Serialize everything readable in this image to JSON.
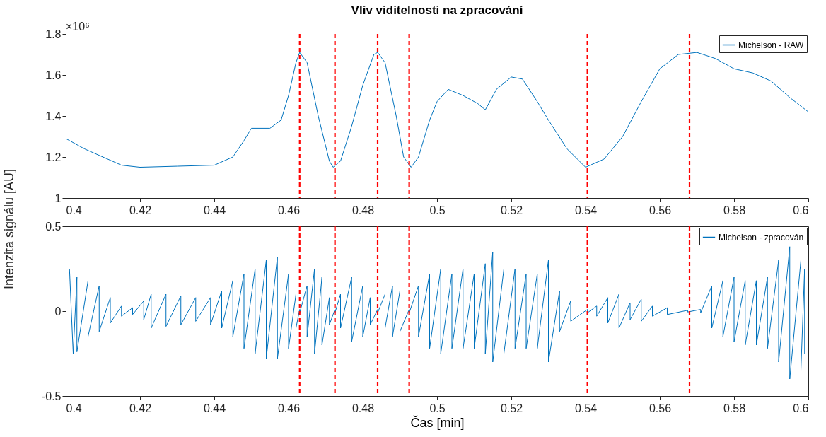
{
  "chart_data": [
    {
      "type": "line",
      "title": "Vliv viditelnosti na zpracování",
      "ylabel": "Intenzita signálu [AU]",
      "annotations": [
        "×10⁶"
      ],
      "x": [
        0.4,
        0.405,
        0.41,
        0.415,
        0.42,
        0.43,
        0.44,
        0.445,
        0.448,
        0.45,
        0.455,
        0.458,
        0.46,
        0.462,
        0.463,
        0.465,
        0.468,
        0.471,
        0.472,
        0.474,
        0.477,
        0.48,
        0.483,
        0.484,
        0.486,
        0.489,
        0.491,
        0.493,
        0.495,
        0.498,
        0.5,
        0.503,
        0.507,
        0.511,
        0.513,
        0.516,
        0.52,
        0.523,
        0.527,
        0.53,
        0.535,
        0.54,
        0.545,
        0.55,
        0.555,
        0.56,
        0.565,
        0.57,
        0.575,
        0.58,
        0.585,
        0.59,
        0.595,
        0.6
      ],
      "series": [
        {
          "name": "Michelson - RAW",
          "color": "#0072bd",
          "values": [
            1.29,
            1.24,
            1.2,
            1.16,
            1.15,
            1.155,
            1.16,
            1.2,
            1.28,
            1.34,
            1.34,
            1.38,
            1.5,
            1.66,
            1.71,
            1.66,
            1.4,
            1.18,
            1.15,
            1.18,
            1.35,
            1.55,
            1.7,
            1.71,
            1.66,
            1.4,
            1.2,
            1.15,
            1.2,
            1.38,
            1.47,
            1.53,
            1.5,
            1.46,
            1.43,
            1.53,
            1.59,
            1.58,
            1.47,
            1.38,
            1.24,
            1.15,
            1.19,
            1.3,
            1.47,
            1.63,
            1.7,
            1.71,
            1.68,
            1.63,
            1.61,
            1.57,
            1.49,
            1.42
          ]
        }
      ],
      "xlim": [
        0.4,
        0.6
      ],
      "xticks": [
        0.4,
        0.42,
        0.44,
        0.46,
        0.48,
        0.5,
        0.52,
        0.54,
        0.56,
        0.58,
        0.6
      ],
      "ylim": [
        1,
        1.8
      ],
      "yticks": [
        1,
        1.2,
        1.4,
        1.6,
        1.8
      ],
      "ref_lines": [
        {
          "axis": "x",
          "value": 0.463,
          "color": "#ff0000",
          "line_style": "dashed"
        },
        {
          "axis": "x",
          "value": 0.4725,
          "color": "#ff0000",
          "line_style": "dashed"
        },
        {
          "axis": "x",
          "value": 0.484,
          "color": "#ff0000",
          "line_style": "dashed"
        },
        {
          "axis": "x",
          "value": 0.4925,
          "color": "#ff0000",
          "line_style": "dashed"
        },
        {
          "axis": "x",
          "value": 0.5405,
          "color": "#ff0000",
          "line_style": "dashed"
        },
        {
          "axis": "x",
          "value": 0.568,
          "color": "#ff0000",
          "line_style": "dashed"
        }
      ],
      "grid": false,
      "legend": "top right"
    },
    {
      "type": "line",
      "xlabel": "Čas [min]",
      "x": [
        0.401,
        0.402,
        0.403,
        0.403,
        0.406,
        0.406,
        0.409,
        0.409,
        0.412,
        0.412,
        0.415,
        0.415,
        0.418,
        0.418,
        0.421,
        0.421,
        0.423,
        0.423,
        0.427,
        0.427,
        0.431,
        0.431,
        0.435,
        0.435,
        0.439,
        0.439,
        0.442,
        0.442,
        0.445,
        0.445,
        0.448,
        0.448,
        0.451,
        0.451,
        0.454,
        0.454,
        0.457,
        0.457,
        0.46,
        0.46,
        0.462,
        0.462,
        0.463,
        0.463,
        0.465,
        0.465,
        0.467,
        0.467,
        0.469,
        0.469,
        0.471,
        0.471,
        0.4725,
        0.4725,
        0.474,
        0.474,
        0.477,
        0.477,
        0.48,
        0.48,
        0.482,
        0.482,
        0.484,
        0.484,
        0.486,
        0.486,
        0.488,
        0.488,
        0.49,
        0.49,
        0.4925,
        0.4925,
        0.495,
        0.495,
        0.498,
        0.498,
        0.501,
        0.501,
        0.504,
        0.504,
        0.507,
        0.507,
        0.51,
        0.51,
        0.513,
        0.513,
        0.515,
        0.515,
        0.518,
        0.518,
        0.521,
        0.521,
        0.524,
        0.524,
        0.527,
        0.527,
        0.53,
        0.53,
        0.533,
        0.533,
        0.536,
        0.536,
        0.5405,
        0.5405,
        0.543,
        0.543,
        0.546,
        0.546,
        0.549,
        0.549,
        0.552,
        0.552,
        0.555,
        0.555,
        0.558,
        0.558,
        0.562,
        0.562,
        0.5675,
        0.5675,
        0.571,
        0.571,
        0.574,
        0.574,
        0.577,
        0.577,
        0.58,
        0.58,
        0.583,
        0.583,
        0.586,
        0.586,
        0.589,
        0.589,
        0.592,
        0.592,
        0.595,
        0.595,
        0.598,
        0.598,
        0.599,
        0.599
      ],
      "series": [
        {
          "name": "Michelson - zpracován",
          "color": "#0072bd",
          "values": [
            0.25,
            -0.25,
            0.2,
            -0.24,
            0.18,
            -0.15,
            0.15,
            -0.12,
            0.08,
            -0.07,
            0.03,
            -0.03,
            0.02,
            -0.02,
            0.06,
            -0.05,
            0.1,
            -0.1,
            0.1,
            -0.09,
            0.09,
            -0.08,
            0.08,
            -0.06,
            0.08,
            -0.08,
            0.12,
            -0.1,
            0.18,
            -0.15,
            0.22,
            -0.22,
            0.25,
            -0.25,
            0.3,
            -0.28,
            0.32,
            -0.28,
            0.22,
            -0.22,
            0.1,
            -0.1,
            0.01,
            -0.01,
            0.15,
            -0.15,
            0.25,
            -0.25,
            0.2,
            -0.2,
            0.08,
            -0.08,
            0.01,
            -0.01,
            0.1,
            -0.1,
            0.2,
            -0.18,
            0.15,
            -0.15,
            0.08,
            -0.08,
            0.01,
            -0.01,
            0.1,
            -0.1,
            0.15,
            -0.15,
            0.12,
            -0.12,
            0.01,
            -0.01,
            0.15,
            -0.15,
            0.22,
            -0.22,
            0.25,
            -0.25,
            0.22,
            -0.22,
            0.25,
            -0.22,
            0.22,
            -0.22,
            0.28,
            -0.25,
            0.35,
            -0.3,
            0.25,
            -0.25,
            0.25,
            -0.22,
            0.22,
            -0.22,
            0.22,
            -0.22,
            0.3,
            -0.3,
            0.12,
            -0.12,
            0.06,
            -0.06,
            0.01,
            -0.01,
            0.03,
            -0.03,
            0.08,
            -0.07,
            0.1,
            -0.1,
            0.05,
            -0.05,
            0.07,
            -0.06,
            0.03,
            -0.03,
            0.02,
            -0.02,
            0.005,
            -0.005,
            0.01,
            -0.01,
            0.15,
            -0.1,
            0.18,
            -0.15,
            0.2,
            -0.18,
            0.18,
            -0.2,
            0.18,
            -0.2,
            0.2,
            -0.22,
            0.3,
            -0.3,
            0.38,
            -0.4,
            0.3,
            -0.35,
            0.25,
            -0.25
          ]
        }
      ],
      "xlim": [
        0.4,
        0.6
      ],
      "xticks": [
        0.4,
        0.42,
        0.44,
        0.46,
        0.48,
        0.5,
        0.52,
        0.54,
        0.56,
        0.58,
        0.6
      ],
      "ylim": [
        -0.5,
        0.5
      ],
      "yticks": [
        -0.5,
        0,
        0.5
      ],
      "ref_lines": [
        {
          "axis": "x",
          "value": 0.463,
          "color": "#ff0000",
          "line_style": "dashed"
        },
        {
          "axis": "x",
          "value": 0.4725,
          "color": "#ff0000",
          "line_style": "dashed"
        },
        {
          "axis": "x",
          "value": 0.484,
          "color": "#ff0000",
          "line_style": "dashed"
        },
        {
          "axis": "x",
          "value": 0.4925,
          "color": "#ff0000",
          "line_style": "dashed"
        },
        {
          "axis": "x",
          "value": 0.5405,
          "color": "#ff0000",
          "line_style": "dashed"
        },
        {
          "axis": "x",
          "value": 0.568,
          "color": "#ff0000",
          "line_style": "dashed"
        }
      ],
      "grid": false,
      "legend": "top right"
    }
  ]
}
